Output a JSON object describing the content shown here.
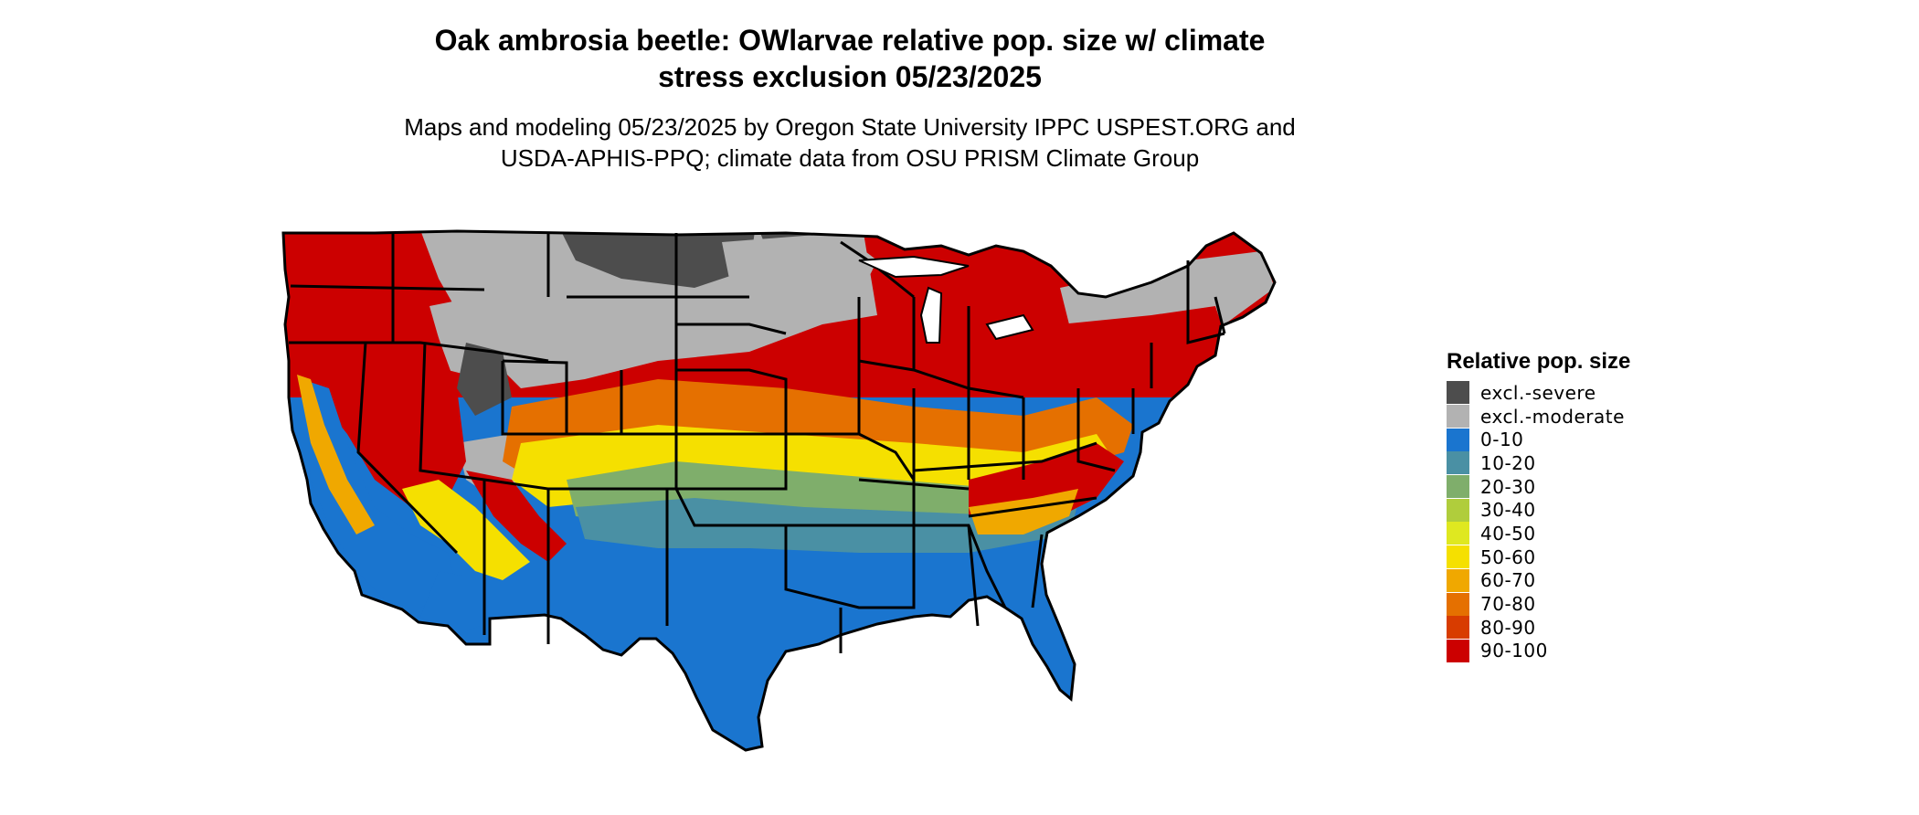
{
  "title": {
    "line1": "Oak ambrosia beetle: OWlarvae relative pop. size w/ climate",
    "line2": "stress exclusion 05/23/2025"
  },
  "subtitle": {
    "line1": "Maps and modeling 05/23/2025 by Oregon State University IPPC USPEST.ORG and",
    "line2": "USDA-APHIS-PPQ; climate data from OSU PRISM Climate Group"
  },
  "legend": {
    "title": "Relative pop. size",
    "items": [
      {
        "label": "excl.-severe",
        "color": "#4d4d4d"
      },
      {
        "label": "excl.-moderate",
        "color": "#b2b2b2"
      },
      {
        "label": "0-10",
        "color": "#1a75cf"
      },
      {
        "label": "10-20",
        "color": "#4a90a4"
      },
      {
        "label": "20-30",
        "color": "#7fae6b"
      },
      {
        "label": "30-40",
        "color": "#b0cd3c"
      },
      {
        "label": "40-50",
        "color": "#dfe820"
      },
      {
        "label": "50-60",
        "color": "#f5e000"
      },
      {
        "label": "60-70",
        "color": "#f0a800"
      },
      {
        "label": "70-80",
        "color": "#e57000"
      },
      {
        "label": "80-90",
        "color": "#d83c00"
      },
      {
        "label": "90-100",
        "color": "#cc0000"
      }
    ]
  }
}
